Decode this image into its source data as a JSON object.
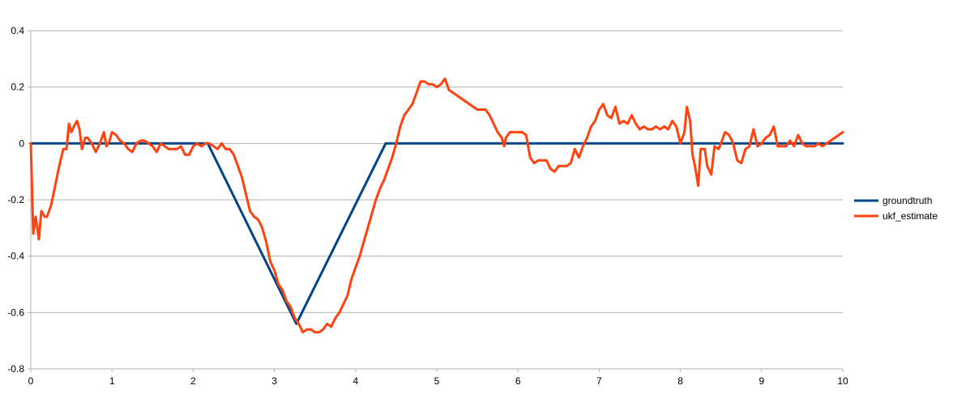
{
  "chart_data": {
    "type": "line",
    "title": "",
    "xlabel": "",
    "ylabel": "",
    "xlim": [
      0,
      10
    ],
    "ylim": [
      -0.8,
      0.4
    ],
    "x_ticks": [
      0,
      1,
      2,
      3,
      4,
      5,
      6,
      7,
      8,
      9,
      10
    ],
    "y_ticks": [
      -0.8,
      -0.6,
      -0.4,
      -0.2,
      0,
      0.2,
      0.4
    ],
    "x_tick_labels": [
      "0",
      "1",
      "2",
      "3",
      "4",
      "5",
      "6",
      "7",
      "8",
      "9",
      "10"
    ],
    "y_tick_labels": [
      "-0.8",
      "-0.6",
      "-0.4",
      "-0.2",
      "0",
      "0.2",
      "0.4"
    ],
    "grid": "horizontal",
    "legend_position": "right",
    "series": [
      {
        "name": "groundtruth",
        "color": "#004586",
        "points": [
          [
            0,
            0
          ],
          [
            2.18,
            0
          ],
          [
            3.27,
            -0.64
          ],
          [
            4.37,
            0
          ],
          [
            10,
            0
          ]
        ]
      },
      {
        "name": "ukf_estimate",
        "color": "#ff420e",
        "points": [
          [
            0,
            0
          ],
          [
            0.03,
            -0.32
          ],
          [
            0.06,
            -0.26
          ],
          [
            0.1,
            -0.34
          ],
          [
            0.13,
            -0.24
          ],
          [
            0.17,
            -0.26
          ],
          [
            0.2,
            -0.26
          ],
          [
            0.25,
            -0.22
          ],
          [
            0.3,
            -0.15
          ],
          [
            0.35,
            -0.08
          ],
          [
            0.4,
            -0.02
          ],
          [
            0.44,
            -0.02
          ],
          [
            0.47,
            0.07
          ],
          [
            0.5,
            0.04
          ],
          [
            0.53,
            0.06
          ],
          [
            0.57,
            0.08
          ],
          [
            0.6,
            0.05
          ],
          [
            0.63,
            -0.02
          ],
          [
            0.67,
            0.02
          ],
          [
            0.7,
            0.02
          ],
          [
            0.75,
            0.0
          ],
          [
            0.8,
            -0.03
          ],
          [
            0.85,
            0.0
          ],
          [
            0.9,
            0.04
          ],
          [
            0.93,
            -0.01
          ],
          [
            0.97,
            0.01
          ],
          [
            1.0,
            0.04
          ],
          [
            1.05,
            0.03
          ],
          [
            1.1,
            0.01
          ],
          [
            1.15,
            0.0
          ],
          [
            1.2,
            -0.02
          ],
          [
            1.25,
            -0.03
          ],
          [
            1.3,
            0.0
          ],
          [
            1.35,
            0.01
          ],
          [
            1.4,
            0.01
          ],
          [
            1.45,
            0.0
          ],
          [
            1.5,
            -0.01
          ],
          [
            1.55,
            -0.03
          ],
          [
            1.6,
            0.0
          ],
          [
            1.65,
            -0.01
          ],
          [
            1.7,
            -0.02
          ],
          [
            1.75,
            -0.02
          ],
          [
            1.8,
            -0.02
          ],
          [
            1.85,
            -0.01
          ],
          [
            1.9,
            -0.04
          ],
          [
            1.95,
            -0.04
          ],
          [
            2.0,
            -0.01
          ],
          [
            2.05,
            0.0
          ],
          [
            2.1,
            -0.01
          ],
          [
            2.15,
            0.0
          ],
          [
            2.2,
            0.0
          ],
          [
            2.25,
            -0.01
          ],
          [
            2.3,
            -0.02
          ],
          [
            2.35,
            0.0
          ],
          [
            2.4,
            -0.02
          ],
          [
            2.45,
            -0.02
          ],
          [
            2.5,
            -0.04
          ],
          [
            2.55,
            -0.08
          ],
          [
            2.6,
            -0.12
          ],
          [
            2.65,
            -0.18
          ],
          [
            2.7,
            -0.24
          ],
          [
            2.75,
            -0.26
          ],
          [
            2.8,
            -0.27
          ],
          [
            2.85,
            -0.3
          ],
          [
            2.9,
            -0.35
          ],
          [
            2.95,
            -0.42
          ],
          [
            3.0,
            -0.45
          ],
          [
            3.05,
            -0.5
          ],
          [
            3.1,
            -0.52
          ],
          [
            3.15,
            -0.56
          ],
          [
            3.2,
            -0.58
          ],
          [
            3.25,
            -0.62
          ],
          [
            3.3,
            -0.64
          ],
          [
            3.35,
            -0.67
          ],
          [
            3.4,
            -0.66
          ],
          [
            3.45,
            -0.66
          ],
          [
            3.5,
            -0.67
          ],
          [
            3.55,
            -0.67
          ],
          [
            3.6,
            -0.66
          ],
          [
            3.65,
            -0.64
          ],
          [
            3.7,
            -0.65
          ],
          [
            3.75,
            -0.62
          ],
          [
            3.8,
            -0.6
          ],
          [
            3.85,
            -0.57
          ],
          [
            3.9,
            -0.54
          ],
          [
            3.95,
            -0.48
          ],
          [
            4.0,
            -0.44
          ],
          [
            4.05,
            -0.4
          ],
          [
            4.1,
            -0.35
          ],
          [
            4.15,
            -0.3
          ],
          [
            4.2,
            -0.25
          ],
          [
            4.25,
            -0.2
          ],
          [
            4.3,
            -0.16
          ],
          [
            4.35,
            -0.13
          ],
          [
            4.4,
            -0.09
          ],
          [
            4.45,
            -0.05
          ],
          [
            4.5,
            0.0
          ],
          [
            4.55,
            0.06
          ],
          [
            4.6,
            0.1
          ],
          [
            4.65,
            0.12
          ],
          [
            4.7,
            0.14
          ],
          [
            4.75,
            0.18
          ],
          [
            4.8,
            0.22
          ],
          [
            4.85,
            0.22
          ],
          [
            4.9,
            0.21
          ],
          [
            4.95,
            0.21
          ],
          [
            5.0,
            0.2
          ],
          [
            5.05,
            0.21
          ],
          [
            5.1,
            0.23
          ],
          [
            5.15,
            0.19
          ],
          [
            5.2,
            0.18
          ],
          [
            5.25,
            0.17
          ],
          [
            5.3,
            0.16
          ],
          [
            5.35,
            0.15
          ],
          [
            5.4,
            0.14
          ],
          [
            5.45,
            0.13
          ],
          [
            5.5,
            0.12
          ],
          [
            5.55,
            0.12
          ],
          [
            5.6,
            0.12
          ],
          [
            5.65,
            0.1
          ],
          [
            5.7,
            0.07
          ],
          [
            5.75,
            0.04
          ],
          [
            5.8,
            0.02
          ],
          [
            5.83,
            -0.01
          ],
          [
            5.85,
            0.02
          ],
          [
            5.9,
            0.04
          ],
          [
            5.95,
            0.04
          ],
          [
            6.0,
            0.04
          ],
          [
            6.05,
            0.04
          ],
          [
            6.1,
            0.03
          ],
          [
            6.15,
            -0.05
          ],
          [
            6.2,
            -0.07
          ],
          [
            6.25,
            -0.06
          ],
          [
            6.3,
            -0.06
          ],
          [
            6.35,
            -0.06
          ],
          [
            6.4,
            -0.09
          ],
          [
            6.45,
            -0.1
          ],
          [
            6.5,
            -0.08
          ],
          [
            6.55,
            -0.08
          ],
          [
            6.6,
            -0.08
          ],
          [
            6.65,
            -0.07
          ],
          [
            6.7,
            -0.02
          ],
          [
            6.75,
            -0.05
          ],
          [
            6.8,
            -0.01
          ],
          [
            6.85,
            0.02
          ],
          [
            6.9,
            0.06
          ],
          [
            6.95,
            0.08
          ],
          [
            7.0,
            0.12
          ],
          [
            7.05,
            0.14
          ],
          [
            7.1,
            0.1
          ],
          [
            7.15,
            0.09
          ],
          [
            7.2,
            0.13
          ],
          [
            7.25,
            0.07
          ],
          [
            7.3,
            0.08
          ],
          [
            7.35,
            0.07
          ],
          [
            7.4,
            0.1
          ],
          [
            7.45,
            0.07
          ],
          [
            7.5,
            0.05
          ],
          [
            7.55,
            0.06
          ],
          [
            7.6,
            0.05
          ],
          [
            7.65,
            0.05
          ],
          [
            7.7,
            0.06
          ],
          [
            7.75,
            0.05
          ],
          [
            7.8,
            0.06
          ],
          [
            7.85,
            0.05
          ],
          [
            7.9,
            0.08
          ],
          [
            7.95,
            0.06
          ],
          [
            8.0,
            0.0
          ],
          [
            8.05,
            0.04
          ],
          [
            8.08,
            0.13
          ],
          [
            8.12,
            0.08
          ],
          [
            8.15,
            -0.04
          ],
          [
            8.18,
            -0.08
          ],
          [
            8.22,
            -0.15
          ],
          [
            8.25,
            -0.02
          ],
          [
            8.3,
            -0.02
          ],
          [
            8.33,
            -0.08
          ],
          [
            8.38,
            -0.11
          ],
          [
            8.42,
            -0.01
          ],
          [
            8.47,
            -0.02
          ],
          [
            8.5,
            0.0
          ],
          [
            8.55,
            0.04
          ],
          [
            8.6,
            0.03
          ],
          [
            8.65,
            0.0
          ],
          [
            8.7,
            -0.06
          ],
          [
            8.75,
            -0.07
          ],
          [
            8.8,
            -0.02
          ],
          [
            8.85,
            -0.01
          ],
          [
            8.9,
            0.05
          ],
          [
            8.95,
            -0.01
          ],
          [
            9.0,
            0.0
          ],
          [
            9.05,
            0.02
          ],
          [
            9.1,
            0.03
          ],
          [
            9.15,
            0.06
          ],
          [
            9.2,
            -0.01
          ],
          [
            9.25,
            -0.01
          ],
          [
            9.3,
            -0.01
          ],
          [
            9.35,
            0.01
          ],
          [
            9.4,
            -0.01
          ],
          [
            9.45,
            0.03
          ],
          [
            9.5,
            0.0
          ],
          [
            9.55,
            -0.01
          ],
          [
            9.6,
            -0.01
          ],
          [
            9.65,
            -0.01
          ],
          [
            9.7,
            0.0
          ],
          [
            9.75,
            -0.01
          ],
          [
            9.8,
            0.0
          ],
          [
            9.85,
            0.01
          ],
          [
            9.9,
            0.02
          ],
          [
            9.95,
            0.03
          ],
          [
            10.0,
            0.04
          ]
        ]
      }
    ]
  }
}
